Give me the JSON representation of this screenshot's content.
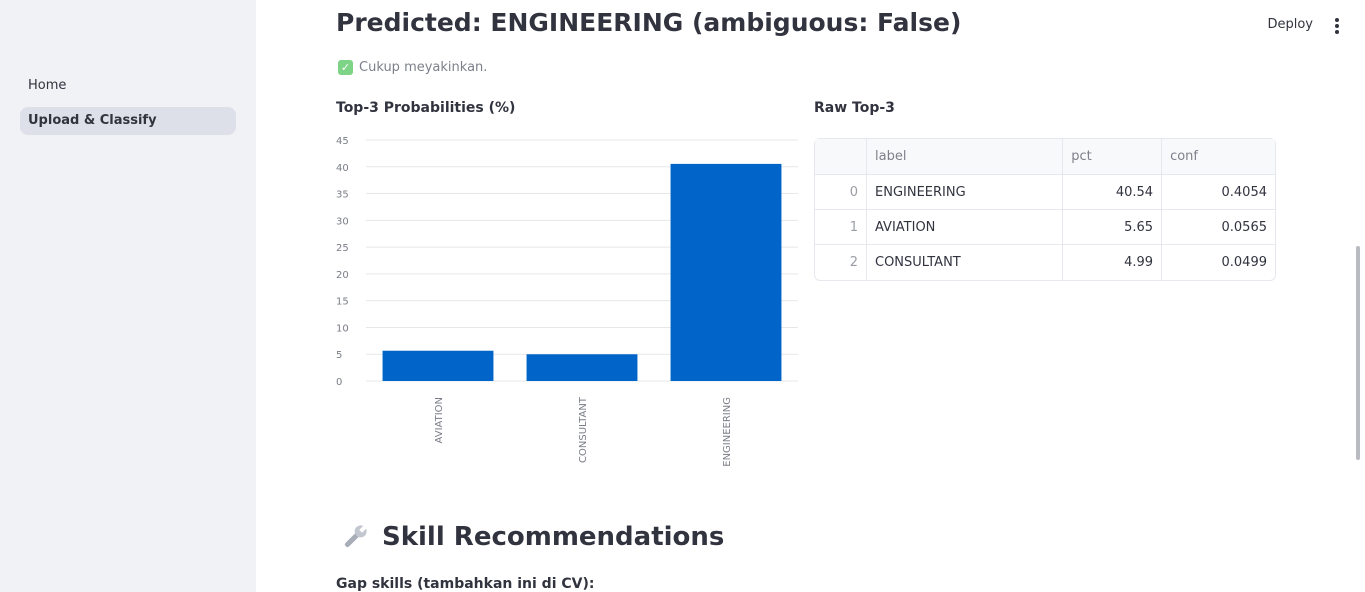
{
  "sidebar": {
    "items": [
      {
        "label": "Home"
      },
      {
        "label": "Upload & Classify"
      }
    ]
  },
  "header": {
    "deploy_label": "Deploy"
  },
  "main": {
    "title": "Predicted: ENGINEERING (ambiguous: False)",
    "note": "Cukup meyakinkan.",
    "chart_heading": "Top-3 Probabilities (%)",
    "table_heading": "Raw Top-3",
    "skills_heading": "Skill Recommendations",
    "gap_label": "Gap skills (tambahkan ini di CV):"
  },
  "table": {
    "columns": [
      "",
      "label",
      "pct",
      "conf"
    ],
    "rows": [
      [
        "0",
        "ENGINEERING",
        "40.54",
        "0.4054"
      ],
      [
        "1",
        "AVIATION",
        "5.65",
        "0.0565"
      ],
      [
        "2",
        "CONSULTANT",
        "4.99",
        "0.0499"
      ]
    ]
  },
  "colors": {
    "bar": "#0064c8",
    "check": "#7ed486"
  },
  "chart_data": {
    "type": "bar",
    "categories": [
      "AVIATION",
      "CONSULTANT",
      "ENGINEERING"
    ],
    "values": [
      5.65,
      4.99,
      40.54
    ],
    "yticks": [
      0,
      5,
      10,
      15,
      20,
      25,
      30,
      35,
      40,
      45
    ],
    "ylim": [
      0,
      45
    ],
    "grid": true
  }
}
